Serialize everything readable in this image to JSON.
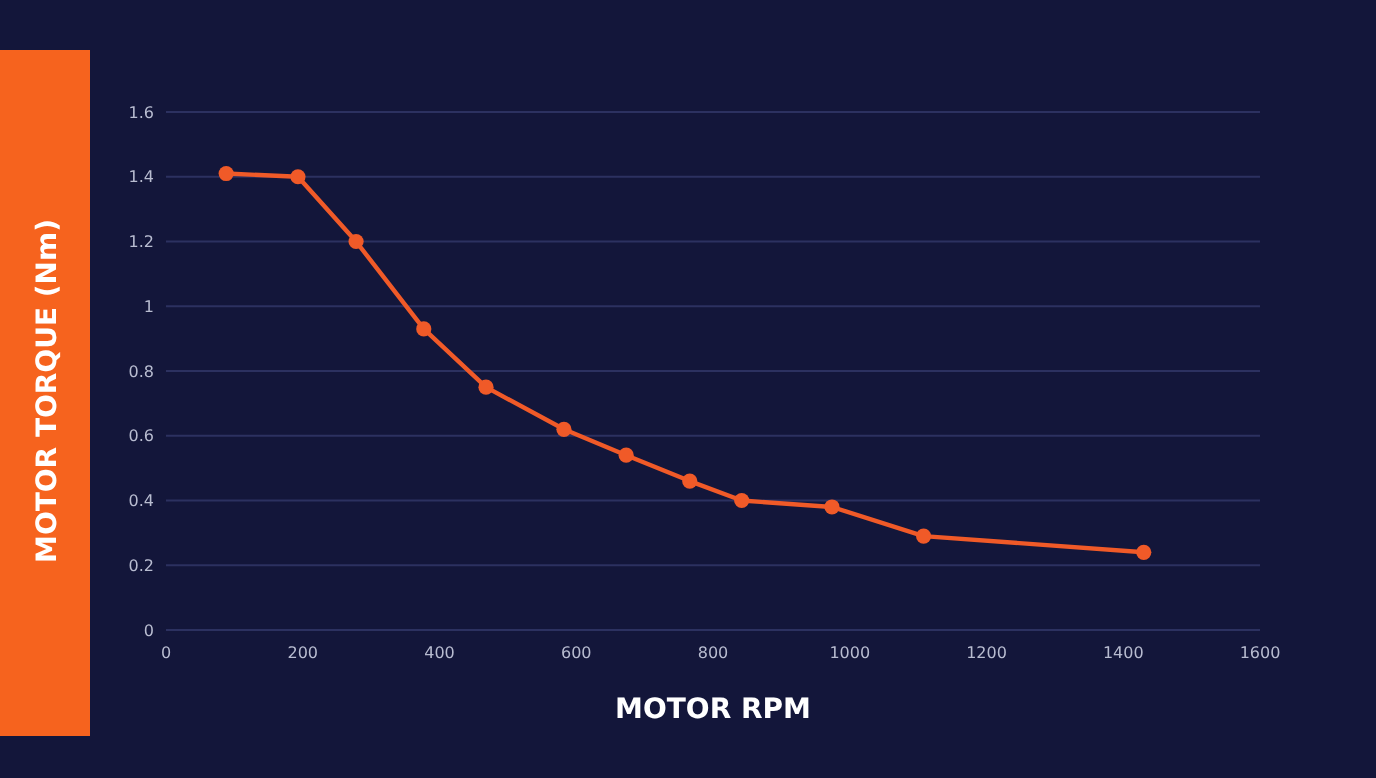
{
  "chart_data": {
    "type": "line",
    "xlabel": "MOTOR RPM",
    "ylabel": "MOTOR TORQUE (Nm)",
    "x": [
      88,
      193,
      278,
      377,
      468,
      582,
      673,
      766,
      842,
      974,
      1108,
      1430
    ],
    "series": [
      {
        "color": "#f05a28",
        "values": [
          1.41,
          1.4,
          1.2,
          0.93,
          0.75,
          0.62,
          0.54,
          0.46,
          0.4,
          0.38,
          0.29,
          0.24
        ]
      }
    ],
    "xlim": [
      0,
      1600
    ],
    "xticks": [
      0,
      200,
      400,
      600,
      800,
      1000,
      1200,
      1400,
      1600
    ],
    "ylim": [
      0,
      1.6
    ],
    "yticks": [
      0,
      0.2,
      0.4,
      0.6,
      0.8,
      1,
      1.2,
      1.4,
      1.6
    ],
    "grid": "y",
    "marker": "circle",
    "line_style": "solid"
  }
}
